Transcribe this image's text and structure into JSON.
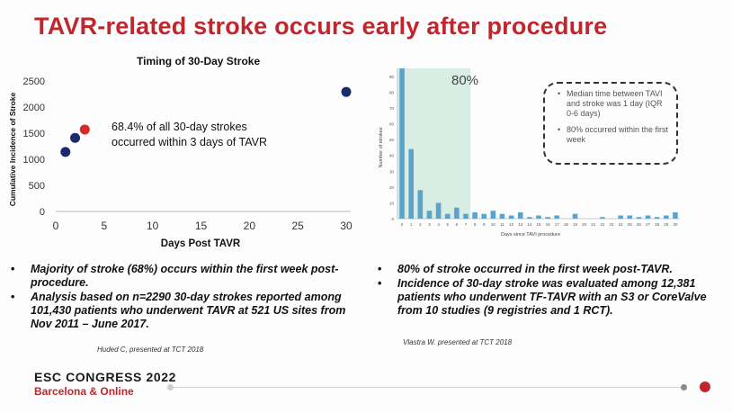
{
  "slide": {
    "title": "TAVR-related stroke occurs early after procedure",
    "left_chart_title": "Timing of 30-Day Stroke",
    "left_annotation_line1": "68.4% of all 30-day strokes",
    "left_annotation_line2": "occurred within 3 days of TAVR",
    "right_callout": [
      "Median time between TAVI and stroke was 1 day (IQR 0-6 days)",
      "80% occurred within the first week"
    ],
    "right_highlight_label": "80%",
    "left_bullets": [
      "Majority of stroke (68%) occurs within the first week post-procedure.",
      "Analysis based on n=2290 30-day strokes reported among 101,430 patients who underwent TAVR at 521 US sites from Nov 2011 – June 2017."
    ],
    "left_cite": "Huded C, presented at TCT 2018",
    "right_bullets": [
      "80% of stroke occurred in the first week post-TAVR.",
      "Incidence of 30-day stroke was evaluated among 12,381 patients who underwent TF-TAVR with an S3 or CoreValve  from 10 studies (9 registries and 1 RCT)."
    ],
    "right_cite": "Vlastra W. presented at TCT 2018",
    "footer_title": "ESC CONGRESS 2022",
    "footer_sub": "Barcelona & Online",
    "colors": {
      "title_red": "#c0272d",
      "bar_blue": "#5ba3cc",
      "highlight_green": "#d8eee4",
      "point_navy": "#1a2a6b",
      "point_red": "#d62b2b"
    }
  },
  "chart_data": [
    {
      "type": "scatter",
      "title": "Timing of 30-Day Stroke",
      "xlabel": "Days Post TAVR",
      "ylabel": "Cumulative Incidence of Stroke",
      "xlim": [
        0,
        30
      ],
      "ylim": [
        0,
        2500
      ],
      "xticks": [
        0,
        5,
        10,
        15,
        20,
        25,
        30
      ],
      "yticks": [
        0,
        500,
        1000,
        1500,
        2000,
        2500
      ],
      "points": [
        {
          "x": 1,
          "y": 1140,
          "color": "#1a2a6b"
        },
        {
          "x": 2,
          "y": 1410,
          "color": "#1a2a6b"
        },
        {
          "x": 3,
          "y": 1570,
          "color": "#d62b2b"
        },
        {
          "x": 30,
          "y": 2290,
          "color": "#1a2a6b"
        }
      ],
      "grid": false
    },
    {
      "type": "bar",
      "xlabel": "Days since TAVI procedure",
      "ylabel": "Number of strokes",
      "categories": [
        "0",
        "1",
        "2",
        "3",
        "4",
        "5",
        "6",
        "7",
        "8",
        "9",
        "10",
        "11",
        "12",
        "13",
        "14",
        "15",
        "16",
        "17",
        "18",
        "19",
        "20",
        "21",
        "22",
        "23",
        "24",
        "25",
        "26",
        "27",
        "28",
        "29",
        "30"
      ],
      "values": [
        95,
        44,
        18,
        5,
        10,
        3,
        7,
        3,
        4,
        3,
        5,
        3,
        2,
        4,
        1,
        2,
        1,
        2,
        0,
        3,
        0,
        0,
        1,
        0,
        2,
        2,
        1,
        2,
        1,
        2,
        4
      ],
      "ylim": [
        0,
        95
      ],
      "yticks": [
        0,
        10,
        20,
        30,
        40,
        50,
        60,
        70,
        80,
        90
      ],
      "highlight": {
        "from": 0,
        "to": 7,
        "label": "80%"
      },
      "grid": false
    }
  ]
}
